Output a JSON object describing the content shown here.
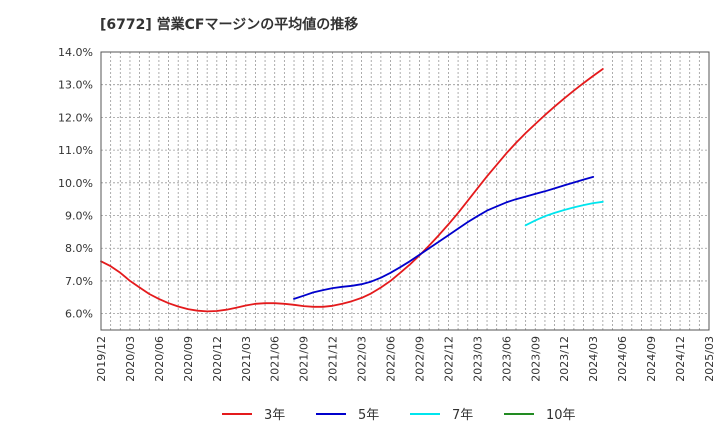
{
  "chart_data": {
    "type": "line",
    "title": "[6772]  営業CFマージンの平均値の推移",
    "xlabel": "",
    "ylabel": "",
    "ylim": [
      5.5,
      14.0
    ],
    "y_ticks": [
      "14.0%",
      "13.0%",
      "12.0%",
      "11.0%",
      "10.0%",
      "9.0%",
      "8.0%",
      "7.0%",
      "6.0%"
    ],
    "y_tick_values": [
      14,
      13,
      12,
      11,
      10,
      9,
      8,
      7,
      6
    ],
    "x_ticks": [
      "2019/12",
      "2020/03",
      "2020/06",
      "2020/09",
      "2020/12",
      "2021/03",
      "2021/06",
      "2021/09",
      "2021/12",
      "2022/03",
      "2022/06",
      "2022/09",
      "2022/12",
      "2023/03",
      "2023/06",
      "2023/09",
      "2023/12",
      "2024/03",
      "2024/06",
      "2024/09",
      "2024/12",
      "2025/03"
    ],
    "grid": true,
    "legend_position": "bottom",
    "series": [
      {
        "name": "3年",
        "color": "#e41a1c",
        "points": [
          [
            "2019/12",
            7.6
          ],
          [
            "2020/01",
            7.45
          ],
          [
            "2020/02",
            7.25
          ],
          [
            "2020/03",
            7.0
          ],
          [
            "2020/04",
            6.8
          ],
          [
            "2020/05",
            6.6
          ],
          [
            "2020/06",
            6.45
          ],
          [
            "2020/07",
            6.32
          ],
          [
            "2020/08",
            6.22
          ],
          [
            "2020/09",
            6.14
          ],
          [
            "2020/10",
            6.09
          ],
          [
            "2020/11",
            6.07
          ],
          [
            "2020/12",
            6.08
          ],
          [
            "2021/01",
            6.12
          ],
          [
            "2021/02",
            6.18
          ],
          [
            "2021/03",
            6.25
          ],
          [
            "2021/04",
            6.3
          ],
          [
            "2021/05",
            6.32
          ],
          [
            "2021/06",
            6.32
          ],
          [
            "2021/07",
            6.3
          ],
          [
            "2021/08",
            6.27
          ],
          [
            "2021/09",
            6.23
          ],
          [
            "2021/10",
            6.21
          ],
          [
            "2021/11",
            6.21
          ],
          [
            "2021/12",
            6.24
          ],
          [
            "2022/01",
            6.3
          ],
          [
            "2022/02",
            6.38
          ],
          [
            "2022/03",
            6.48
          ],
          [
            "2022/04",
            6.62
          ],
          [
            "2022/05",
            6.8
          ],
          [
            "2022/06",
            7.0
          ],
          [
            "2022/07",
            7.25
          ],
          [
            "2022/08",
            7.5
          ],
          [
            "2022/09",
            7.78
          ],
          [
            "2022/10",
            8.08
          ],
          [
            "2022/11",
            8.4
          ],
          [
            "2022/12",
            8.73
          ],
          [
            "2023/01",
            9.08
          ],
          [
            "2023/02",
            9.45
          ],
          [
            "2023/03",
            9.83
          ],
          [
            "2023/04",
            10.2
          ],
          [
            "2023/05",
            10.55
          ],
          [
            "2023/06",
            10.9
          ],
          [
            "2023/07",
            11.22
          ],
          [
            "2023/08",
            11.52
          ],
          [
            "2023/09",
            11.8
          ],
          [
            "2023/10",
            12.07
          ],
          [
            "2023/11",
            12.33
          ],
          [
            "2023/12",
            12.58
          ],
          [
            "2024/01",
            12.82
          ],
          [
            "2024/02",
            13.05
          ],
          [
            "2024/03",
            13.27
          ],
          [
            "2024/04",
            13.48
          ]
        ]
      },
      {
        "name": "5年",
        "color": "#0000cc",
        "points": [
          [
            "2021/08",
            6.45
          ],
          [
            "2021/09",
            6.55
          ],
          [
            "2021/10",
            6.65
          ],
          [
            "2021/11",
            6.72
          ],
          [
            "2021/12",
            6.78
          ],
          [
            "2022/01",
            6.82
          ],
          [
            "2022/02",
            6.85
          ],
          [
            "2022/03",
            6.9
          ],
          [
            "2022/04",
            6.98
          ],
          [
            "2022/05",
            7.1
          ],
          [
            "2022/06",
            7.25
          ],
          [
            "2022/07",
            7.42
          ],
          [
            "2022/08",
            7.6
          ],
          [
            "2022/09",
            7.8
          ],
          [
            "2022/10",
            8.0
          ],
          [
            "2022/11",
            8.2
          ],
          [
            "2022/12",
            8.4
          ],
          [
            "2023/01",
            8.6
          ],
          [
            "2023/02",
            8.8
          ],
          [
            "2023/03",
            8.98
          ],
          [
            "2023/04",
            9.15
          ],
          [
            "2023/05",
            9.28
          ],
          [
            "2023/06",
            9.4
          ],
          [
            "2023/07",
            9.5
          ],
          [
            "2023/08",
            9.58
          ],
          [
            "2023/09",
            9.66
          ],
          [
            "2023/10",
            9.74
          ],
          [
            "2023/11",
            9.83
          ],
          [
            "2023/12",
            9.92
          ],
          [
            "2024/01",
            10.01
          ],
          [
            "2024/02",
            10.1
          ],
          [
            "2024/03",
            10.18
          ]
        ]
      },
      {
        "name": "7年",
        "color": "#00e5ee",
        "points": [
          [
            "2023/08",
            8.7
          ],
          [
            "2023/09",
            8.85
          ],
          [
            "2023/10",
            8.98
          ],
          [
            "2023/11",
            9.08
          ],
          [
            "2023/12",
            9.17
          ],
          [
            "2024/01",
            9.25
          ],
          [
            "2024/02",
            9.32
          ],
          [
            "2024/03",
            9.38
          ],
          [
            "2024/04",
            9.42
          ]
        ]
      },
      {
        "name": "10年",
        "color": "#228b22",
        "points": []
      }
    ]
  }
}
